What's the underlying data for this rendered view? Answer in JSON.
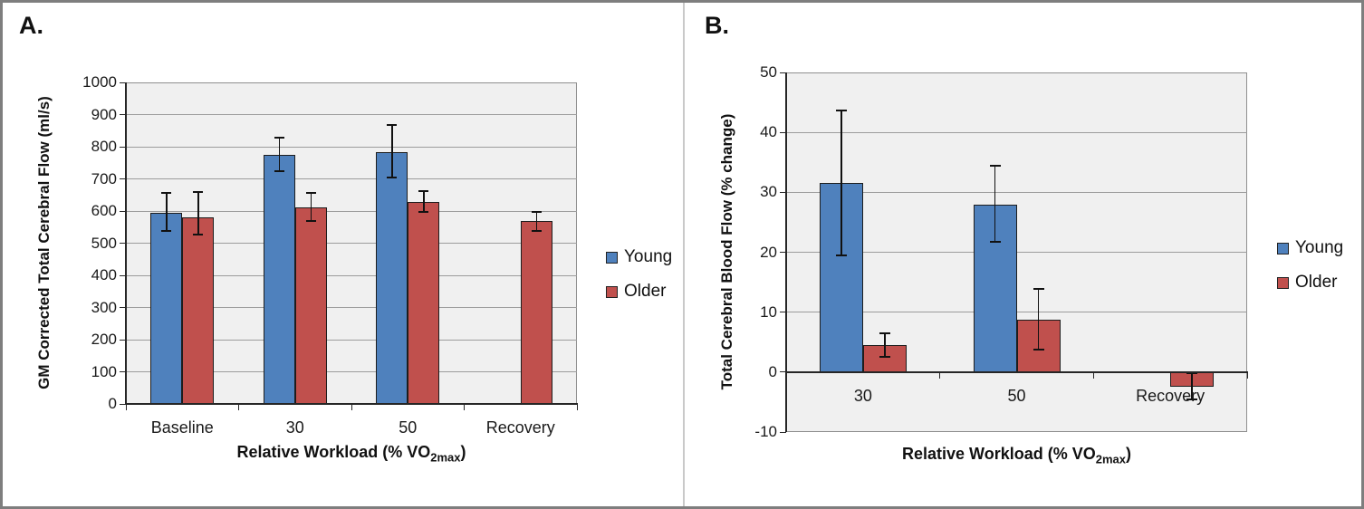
{
  "figure_title": "",
  "colors": {
    "young": "#4F81BD",
    "older": "#C0504D",
    "plot_background": "#F0F0F0",
    "gridline": "#9C9C9C",
    "axis": "#262626",
    "outer_border": "#7E7E7E",
    "panel_divider": "#C9C9C9"
  },
  "chart_data": [
    {
      "panel_label": "A.",
      "type": "bar",
      "title": "",
      "categories": [
        "Baseline",
        "30",
        "50",
        "Recovery"
      ],
      "xlabel": "Relative Workload (% VO2max)",
      "xlabel_parts": {
        "pre": "Relative Workload (% VO",
        "sub": "2max",
        "post": ")"
      },
      "ylabel": "GM Corrected Total Cerebral Flow (ml/s)",
      "ylim": [
        0,
        1000
      ],
      "yticks": [
        0,
        100,
        200,
        300,
        400,
        500,
        600,
        700,
        800,
        900,
        1000
      ],
      "grid": true,
      "legend_position": "right",
      "legend": [
        "Young",
        "Older"
      ],
      "series": [
        {
          "name": "Young",
          "color": "#4F81BD",
          "values": [
            595,
            775,
            783,
            null
          ],
          "err_lo": [
            537,
            723,
            704,
            null
          ],
          "err_hi": [
            655,
            827,
            868,
            null
          ]
        },
        {
          "name": "Older",
          "color": "#C0504D",
          "values": [
            581,
            610,
            629,
            568
          ],
          "err_lo": [
            526,
            569,
            598,
            537
          ],
          "err_hi": [
            658,
            655,
            661,
            597
          ]
        }
      ]
    },
    {
      "panel_label": "B.",
      "type": "bar",
      "title": "",
      "categories": [
        "30",
        "50",
        "Recovery"
      ],
      "xlabel": "Relative Workload (% VO2max)",
      "xlabel_parts": {
        "pre": "Relative Workload (% VO",
        "sub": "2max",
        "post": ")"
      },
      "ylabel": "Total Cerebral Blood Flow (% change)",
      "ylim": [
        -10,
        50
      ],
      "yticks": [
        -10,
        0,
        10,
        20,
        30,
        40,
        50
      ],
      "grid": true,
      "legend_position": "right",
      "legend": [
        "Young",
        "Older"
      ],
      "series": [
        {
          "name": "Young",
          "color": "#4F81BD",
          "values": [
            31.6,
            28,
            null
          ],
          "err_lo": [
            19.5,
            21.8,
            null
          ],
          "err_hi": [
            43.7,
            34.4,
            null
          ]
        },
        {
          "name": "Older",
          "color": "#C0504D",
          "values": [
            4.5,
            8.7,
            -2.4
          ],
          "err_lo": [
            2.6,
            3.7,
            -4.6
          ],
          "err_hi": [
            6.4,
            13.9,
            -0.2
          ]
        }
      ]
    }
  ]
}
